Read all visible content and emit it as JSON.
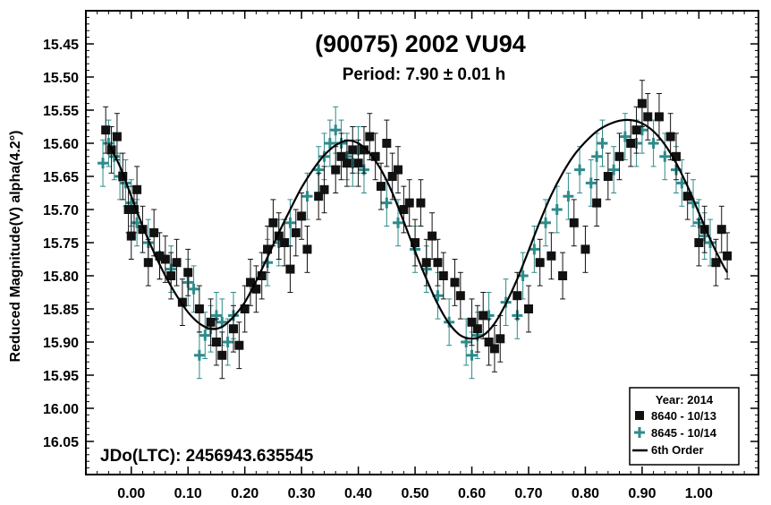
{
  "chart_data": {
    "type": "scatter",
    "title": "(90075) 2002 VU94",
    "subtitle": "Period: 7.90 ± 0.01 h",
    "ylabel": "Reduced Magnitude(V) alpha(4.2°)",
    "xlabel": "",
    "xlim": [
      -0.08,
      1.105
    ],
    "ylim": [
      16.1,
      15.4
    ],
    "y_inverted": true,
    "x_ticks": [
      0.0,
      0.1,
      0.2,
      0.3,
      0.4,
      0.5,
      0.6,
      0.7,
      0.8,
      0.9,
      1.0
    ],
    "x_tick_labels": [
      "0.00",
      "0.10",
      "0.20",
      "0.30",
      "0.40",
      "0.50",
      "0.60",
      "0.70",
      "0.80",
      "0.90",
      "1.00"
    ],
    "y_ticks": [
      15.45,
      15.5,
      15.55,
      15.6,
      15.65,
      15.7,
      15.75,
      15.8,
      15.85,
      15.9,
      15.95,
      16.0,
      16.05
    ],
    "y_tick_labels": [
      "15.45",
      "15.50",
      "15.55",
      "15.60",
      "15.65",
      "15.70",
      "15.75",
      "15.80",
      "15.85",
      "15.90",
      "15.95",
      "16.00",
      "16.05"
    ],
    "annotation": "JDo(LTC): 2456943.635545",
    "legend": {
      "title": "Year: 2014",
      "position": "bottom-right",
      "entries": [
        {
          "label": "8640 - 10/13",
          "marker": "square",
          "color": "#111111"
        },
        {
          "label": "8645 - 10/14",
          "marker": "plus",
          "color": "#2e8b8b"
        },
        {
          "label": "6th Order",
          "marker": "line",
          "color": "#000000"
        }
      ]
    },
    "fit": {
      "name": "6th Order",
      "x": [
        -0.04,
        -0.02,
        0.0,
        0.02,
        0.04,
        0.06,
        0.08,
        0.1,
        0.12,
        0.14,
        0.16,
        0.18,
        0.2,
        0.22,
        0.24,
        0.26,
        0.28,
        0.3,
        0.32,
        0.34,
        0.36,
        0.38,
        0.4,
        0.42,
        0.44,
        0.46,
        0.48,
        0.5,
        0.52,
        0.54,
        0.56,
        0.58,
        0.6,
        0.62,
        0.64,
        0.66,
        0.68,
        0.7,
        0.72,
        0.74,
        0.76,
        0.78,
        0.8,
        0.82,
        0.84,
        0.86,
        0.88,
        0.9,
        0.92,
        0.94,
        0.96,
        0.98,
        1.0,
        1.02,
        1.04,
        1.05
      ],
      "y": [
        15.6,
        15.635,
        15.68,
        15.725,
        15.765,
        15.8,
        15.83,
        15.855,
        15.872,
        15.88,
        15.877,
        15.862,
        15.84,
        15.808,
        15.772,
        15.735,
        15.7,
        15.667,
        15.64,
        15.618,
        15.603,
        15.596,
        15.6,
        15.615,
        15.64,
        15.675,
        15.718,
        15.763,
        15.805,
        15.843,
        15.872,
        15.89,
        15.895,
        15.89,
        15.872,
        15.842,
        15.805,
        15.762,
        15.718,
        15.678,
        15.645,
        15.618,
        15.598,
        15.582,
        15.572,
        15.566,
        15.565,
        15.57,
        15.582,
        15.602,
        15.63,
        15.665,
        15.705,
        15.745,
        15.78,
        15.795
      ]
    },
    "series": [
      {
        "name": "8640 - 10/13",
        "marker": "square",
        "color": "#111111",
        "x": [
          -0.045,
          -0.035,
          -0.025,
          -0.015,
          -0.005,
          0.0,
          0.005,
          0.01,
          0.02,
          0.03,
          0.04,
          0.05,
          0.06,
          0.07,
          0.08,
          0.09,
          0.1,
          0.12,
          0.14,
          0.15,
          0.16,
          0.18,
          0.19,
          0.2,
          0.21,
          0.22,
          0.23,
          0.24,
          0.25,
          0.26,
          0.27,
          0.28,
          0.29,
          0.3,
          0.31,
          0.33,
          0.34,
          0.36,
          0.37,
          0.38,
          0.39,
          0.4,
          0.41,
          0.42,
          0.43,
          0.44,
          0.45,
          0.46,
          0.47,
          0.48,
          0.49,
          0.5,
          0.51,
          0.52,
          0.53,
          0.54,
          0.55,
          0.57,
          0.58,
          0.6,
          0.61,
          0.62,
          0.63,
          0.64,
          0.65,
          0.68,
          0.7,
          0.72,
          0.74,
          0.76,
          0.78,
          0.8,
          0.82,
          0.84,
          0.86,
          0.88,
          0.89,
          0.9,
          0.91,
          0.93,
          0.95,
          0.96,
          0.98,
          1.0,
          1.01,
          1.03,
          1.04,
          1.05
        ],
        "y": [
          15.58,
          15.61,
          15.59,
          15.65,
          15.7,
          15.74,
          15.7,
          15.67,
          15.73,
          15.78,
          15.735,
          15.77,
          15.775,
          15.8,
          15.78,
          15.84,
          15.795,
          15.85,
          15.87,
          15.9,
          15.92,
          15.88,
          15.905,
          15.85,
          15.81,
          15.82,
          15.8,
          15.76,
          15.72,
          15.74,
          15.75,
          15.79,
          15.735,
          15.71,
          15.76,
          15.68,
          15.67,
          15.64,
          15.62,
          15.63,
          15.61,
          15.63,
          15.61,
          15.59,
          15.62,
          15.665,
          15.6,
          15.65,
          15.64,
          15.7,
          15.69,
          15.75,
          15.69,
          15.78,
          15.74,
          15.78,
          15.8,
          15.81,
          15.83,
          15.87,
          15.88,
          15.86,
          15.9,
          15.91,
          15.895,
          15.83,
          15.85,
          15.78,
          15.77,
          15.8,
          15.72,
          15.76,
          15.69,
          15.65,
          15.62,
          15.6,
          15.58,
          15.54,
          15.56,
          15.56,
          15.59,
          15.62,
          15.68,
          15.75,
          15.73,
          15.78,
          15.73,
          15.77
        ]
      },
      {
        "name": "8645 - 10/14",
        "marker": "plus",
        "color": "#2e8b8b",
        "x": [
          -0.05,
          -0.04,
          -0.03,
          -0.02,
          -0.01,
          0.0,
          0.01,
          0.03,
          0.05,
          0.07,
          0.1,
          0.11,
          0.12,
          0.13,
          0.14,
          0.15,
          0.16,
          0.17,
          0.18,
          0.24,
          0.26,
          0.28,
          0.31,
          0.33,
          0.34,
          0.35,
          0.36,
          0.37,
          0.38,
          0.39,
          0.4,
          0.41,
          0.45,
          0.47,
          0.5,
          0.52,
          0.54,
          0.56,
          0.59,
          0.6,
          0.61,
          0.63,
          0.66,
          0.68,
          0.69,
          0.71,
          0.73,
          0.75,
          0.77,
          0.79,
          0.81,
          0.82,
          0.83,
          0.85,
          0.87,
          0.89,
          0.9,
          0.92,
          0.94,
          0.96,
          0.97,
          0.99,
          1.0,
          1.01,
          1.02
        ],
        "y": [
          15.63,
          15.6,
          15.62,
          15.65,
          15.66,
          15.69,
          15.72,
          15.75,
          15.77,
          15.79,
          15.81,
          15.82,
          15.92,
          15.89,
          15.88,
          15.86,
          15.87,
          15.9,
          15.86,
          15.78,
          15.75,
          15.72,
          15.68,
          15.64,
          15.62,
          15.6,
          15.58,
          15.6,
          15.62,
          15.63,
          15.61,
          15.64,
          15.69,
          15.72,
          15.76,
          15.79,
          15.83,
          15.87,
          15.9,
          15.92,
          15.89,
          15.86,
          15.84,
          15.86,
          15.8,
          15.76,
          15.72,
          15.7,
          15.68,
          15.64,
          15.66,
          15.62,
          15.6,
          15.64,
          15.59,
          15.6,
          15.58,
          15.6,
          15.62,
          15.64,
          15.66,
          15.69,
          15.72,
          15.74,
          15.75
        ]
      }
    ]
  }
}
